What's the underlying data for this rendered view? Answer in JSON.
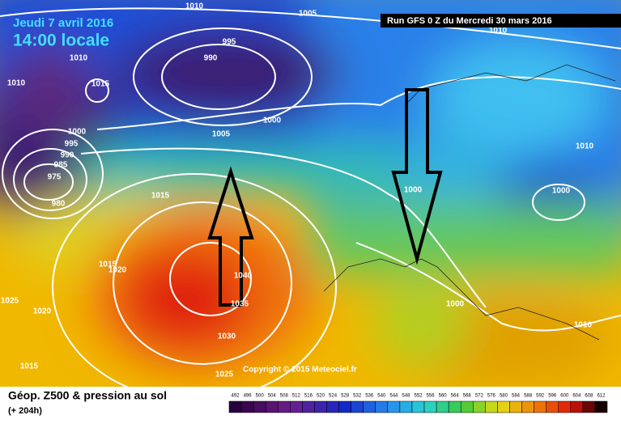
{
  "header": {
    "date": "Jeudi 7 avril 2016",
    "time": "14:00 locale",
    "run": "Run GFS 0 Z du Mercredi 30 mars 2016"
  },
  "copyright": "Copyright © 2015 Meteociel.fr",
  "legend": {
    "title": "Géop. Z500 & pression au sol",
    "lead": "(+ 204h)",
    "scale": [
      492,
      496,
      500,
      504,
      508,
      512,
      516,
      520,
      524,
      528,
      532,
      536,
      540,
      544,
      548,
      552,
      556,
      560,
      564,
      568,
      572,
      576,
      580,
      584,
      588,
      592,
      596,
      600,
      604,
      608,
      612
    ]
  },
  "isobars": [
    "1010",
    "1005",
    "1010",
    "995",
    "990",
    "1010",
    "1015",
    "1010",
    "1000",
    "1000",
    "1005",
    "995",
    "990",
    "985",
    "975",
    "980",
    "1015",
    "1000",
    "1000",
    "1010",
    "1015",
    "1020",
    "1040",
    "1035",
    "1025",
    "1020",
    "1000",
    "1030",
    "1010",
    "1015",
    "1025"
  ]
}
